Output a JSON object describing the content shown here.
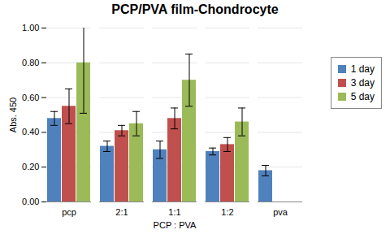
{
  "chart_data": {
    "type": "bar",
    "title": "PCP/PVA film-Chondrocyte",
    "x_label": "PCP : PVA",
    "y_label": "Abs. 450",
    "categories": [
      "pcp",
      "2:1",
      "1:1",
      "1:2",
      "pva"
    ],
    "series": [
      {
        "name": "1 day",
        "color": "#4f81bd",
        "values": [
          0.48,
          0.32,
          0.3,
          0.29,
          0.18
        ],
        "errors": [
          0.04,
          0.03,
          0.05,
          0.02,
          0.03
        ]
      },
      {
        "name": "3 day",
        "color": "#c0504d",
        "values": [
          0.55,
          0.41,
          0.48,
          0.33,
          null
        ],
        "errors": [
          0.1,
          0.03,
          0.06,
          0.04,
          null
        ]
      },
      {
        "name": "5 day",
        "color": "#9bbb59",
        "values": [
          0.8,
          0.45,
          0.7,
          0.46,
          null
        ],
        "errors": [
          0.29,
          0.07,
          0.15,
          0.08,
          null
        ]
      }
    ],
    "ylim": [
      0,
      1
    ],
    "yticks": [
      {
        "value": 0,
        "label": "0.00"
      },
      {
        "value": 0.2,
        "label": "0.20"
      },
      {
        "value": 0.4,
        "label": "0.40"
      },
      {
        "value": 0.6,
        "label": "0.60"
      },
      {
        "value": 0.8,
        "label": "0.80"
      },
      {
        "value": 1,
        "label": "1.00"
      }
    ],
    "grid": true,
    "legend": "right"
  }
}
